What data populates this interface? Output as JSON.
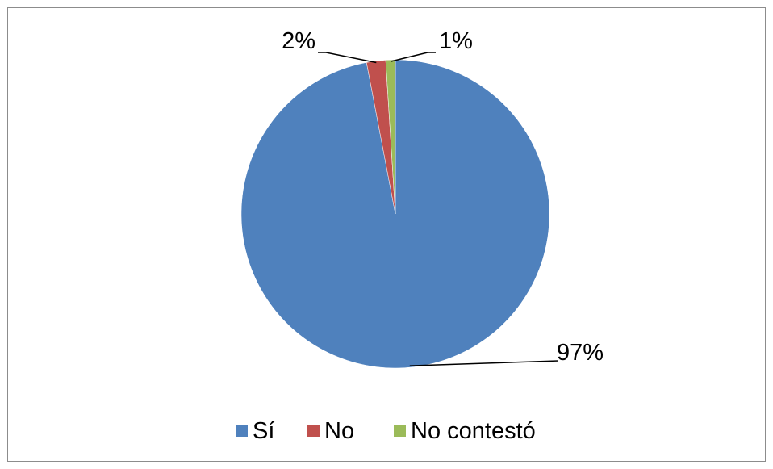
{
  "chart_data": {
    "type": "pie",
    "title": "",
    "legend_position": "bottom",
    "slices": [
      {
        "label": "Sí",
        "value": 97,
        "display": "97%",
        "color": "#4f81bd"
      },
      {
        "label": "No",
        "value": 2,
        "display": "2%",
        "color": "#c0504d"
      },
      {
        "label": "No contestó",
        "value": 1,
        "display": "1%",
        "color": "#9bbb59"
      }
    ]
  }
}
